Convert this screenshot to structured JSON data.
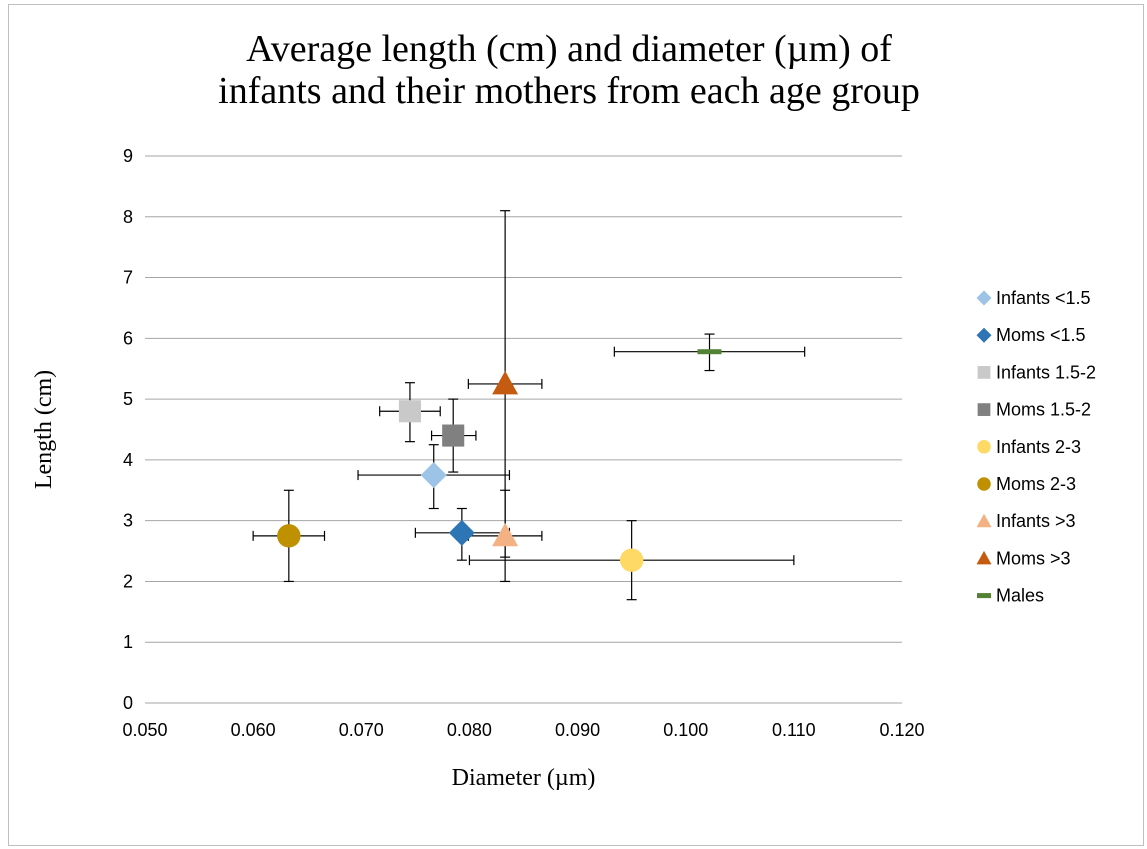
{
  "chart_data": {
    "type": "scatter",
    "title_lines": [
      "Average length (cm) and diameter (µm) of",
      "infants and their mothers from each age group"
    ],
    "xlabel": "Diameter (µm)",
    "ylabel": "Length (cm)",
    "xlim": [
      0.05,
      0.12
    ],
    "ylim": [
      0,
      9
    ],
    "x_ticks": [
      "0.050",
      "0.060",
      "0.070",
      "0.080",
      "0.090",
      "0.100",
      "0.110",
      "0.120"
    ],
    "y_ticks": [
      "0",
      "1",
      "2",
      "3",
      "4",
      "5",
      "6",
      "7",
      "8",
      "9"
    ],
    "grid": "horizontal",
    "legend_position": "right",
    "series": [
      {
        "name": "Infants <1.5",
        "marker": "diamond",
        "color": "#9DC3E6",
        "x": 0.0767,
        "y": 3.75,
        "x_err": [
          0.0697,
          0.0837
        ],
        "y_err": [
          3.2,
          4.25
        ]
      },
      {
        "name": "Moms <1.5",
        "marker": "diamond",
        "color": "#2E75B6",
        "x": 0.0793,
        "y": 2.8,
        "x_err": [
          0.075,
          0.0837
        ],
        "y_err": [
          2.35,
          3.2
        ]
      },
      {
        "name": "Infants 1.5-2",
        "marker": "square",
        "color": "#C9C9C9",
        "x": 0.0745,
        "y": 4.8,
        "x_err": [
          0.0717,
          0.0773
        ],
        "y_err": [
          4.3,
          5.27
        ]
      },
      {
        "name": "Moms 1.5-2",
        "marker": "square",
        "color": "#808080",
        "x": 0.0785,
        "y": 4.4,
        "x_err": [
          0.0765,
          0.0806
        ],
        "y_err": [
          3.8,
          5.0
        ]
      },
      {
        "name": "Infants 2-3",
        "marker": "circle",
        "color": "#FFD966",
        "x": 0.095,
        "y": 2.35,
        "x_err": [
          0.08,
          0.11
        ],
        "y_err": [
          1.7,
          3.0
        ]
      },
      {
        "name": "Moms 2-3",
        "marker": "circle",
        "color": "#BF9000",
        "x": 0.0633,
        "y": 2.75,
        "x_err": [
          0.06,
          0.0666
        ],
        "y_err": [
          2.0,
          3.5
        ]
      },
      {
        "name": "Infants >3",
        "marker": "triangle",
        "color": "#F4B183",
        "x": 0.0833,
        "y": 2.75,
        "x_err": [
          0.0799,
          0.0867
        ],
        "y_err": [
          2.0,
          3.5
        ]
      },
      {
        "name": "Moms >3",
        "marker": "triangle",
        "color": "#C55A11",
        "x": 0.0833,
        "y": 5.25,
        "x_err": [
          0.0799,
          0.0867
        ],
        "y_err": [
          2.4,
          8.1
        ]
      },
      {
        "name": "Males",
        "marker": "dash",
        "color": "#548235",
        "x": 0.1022,
        "y": 5.78,
        "x_err": [
          0.0934,
          0.111
        ],
        "y_err": [
          5.47,
          6.07
        ]
      }
    ]
  }
}
